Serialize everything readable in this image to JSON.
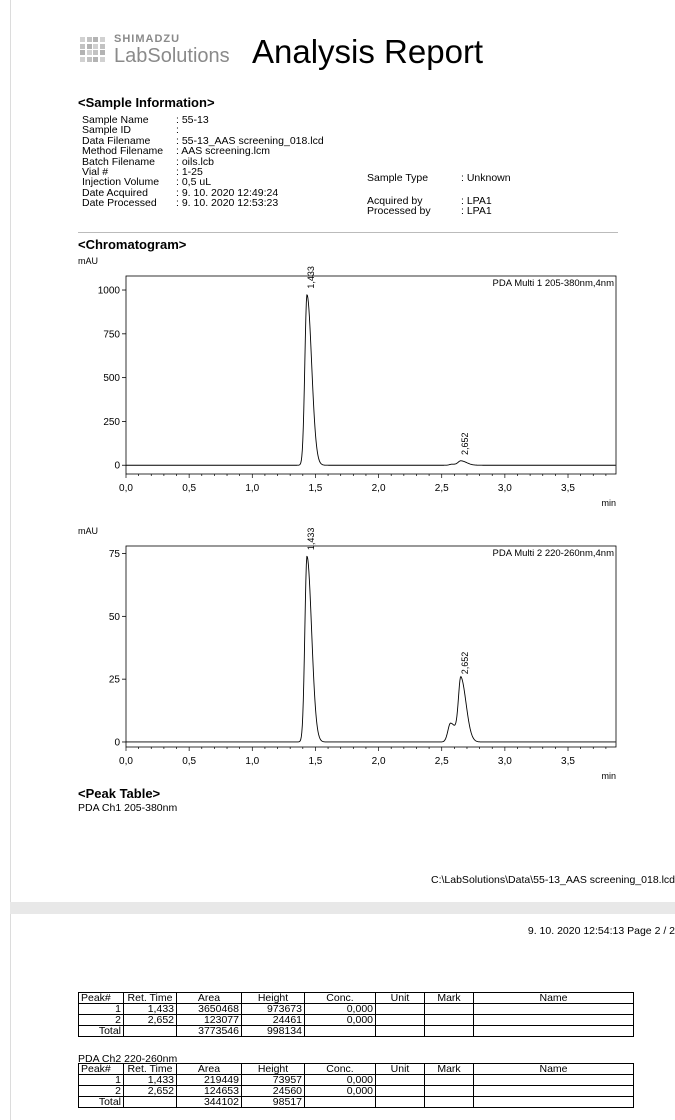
{
  "header": {
    "brand_small": "SHIMADZU",
    "brand_large": "LabSolutions",
    "title": "Analysis Report"
  },
  "sample_info": {
    "heading": "<Sample Information>",
    "left": [
      {
        "label": "Sample Name",
        "value": ": 55-13"
      },
      {
        "label": "Sample ID",
        "value": ":"
      },
      {
        "label": "Data Filename",
        "value": ": 55-13_AAS screening_018.lcd"
      },
      {
        "label": "Method Filename",
        "value": ": AAS screening.lcm"
      },
      {
        "label": "Batch Filename",
        "value": ": oils.lcb"
      },
      {
        "label": "Vial #",
        "value": ": 1-25"
      },
      {
        "label": "Injection Volume",
        "value": ": 0,5 uL"
      },
      {
        "label": "Date Acquired",
        "value": ": 9. 10. 2020 12:49:24"
      },
      {
        "label": "Date Processed",
        "value": ": 9. 10. 2020 12:53:23"
      }
    ],
    "sample_type_label": "Sample Type",
    "sample_type_value": ": Unknown",
    "acquired_by_label": "Acquired by",
    "acquired_by_value": ": LPA1",
    "processed_by_label": "Processed by",
    "processed_by_value": ": LPA1"
  },
  "chromatogram_heading": "<Chromatogram>",
  "chart_data": [
    {
      "type": "line",
      "title": "PDA Multi 1 205-380nm,4nm",
      "ylabel": "mAU",
      "xlabel": "min",
      "xlim": [
        0,
        3.88
      ],
      "ylim": [
        -50,
        1080
      ],
      "x_ticks": [
        "0,0",
        "0,5",
        "1,0",
        "1,5",
        "2,0",
        "2,5",
        "3,0",
        "3,5"
      ],
      "y_ticks": [
        0,
        250,
        500,
        750,
        1000
      ],
      "series": [
        {
          "peaks": [
            {
              "rt": 1.433,
              "height": 973.673,
              "sigma": 0.028
            },
            {
              "rt": 2.652,
              "height": 24.461,
              "sigma": 0.035
            },
            {
              "rt": 2.58,
              "height": 6,
              "sigma": 0.03
            }
          ]
        }
      ],
      "peak_labels": [
        {
          "label": "1,433",
          "x": 1.433,
          "y": 973.673
        },
        {
          "label": "2,652",
          "x": 2.652,
          "y": 24.461
        }
      ]
    },
    {
      "type": "line",
      "title": "PDA Multi 2 220-260nm,4nm",
      "ylabel": "mAU",
      "xlabel": "min",
      "xlim": [
        0,
        3.88
      ],
      "ylim": [
        -2,
        78
      ],
      "x_ticks": [
        "0,0",
        "0,5",
        "1,0",
        "1,5",
        "2,0",
        "2,5",
        "3,0",
        "3,5"
      ],
      "y_ticks": [
        0,
        25,
        50,
        75
      ],
      "series": [
        {
          "peaks": [
            {
              "rt": 1.433,
              "height": 73.957,
              "sigma": 0.028
            },
            {
              "rt": 2.652,
              "height": 24.56,
              "sigma": 0.032
            },
            {
              "rt": 2.57,
              "height": 7.5,
              "sigma": 0.035
            }
          ]
        }
      ],
      "peak_labels": [
        {
          "label": "1,433",
          "x": 1.433,
          "y": 73.957
        },
        {
          "label": "2,652",
          "x": 2.652,
          "y": 24.56
        }
      ]
    }
  ],
  "peak_table": {
    "heading": "<Peak Table>",
    "ch1_label": "PDA Ch1 205-380nm",
    "ch2_label": "PDA Ch2 220-260nm",
    "columns": [
      "Peak#",
      "Ret. Time",
      "Area",
      "Height",
      "Conc.",
      "Unit",
      "Mark",
      "Name"
    ],
    "ch1_rows": [
      [
        "1",
        "1,433",
        "3650468",
        "973673",
        "0,000",
        "",
        "",
        ""
      ],
      [
        "2",
        "2,652",
        "123077",
        "24461",
        "0,000",
        "",
        "",
        ""
      ],
      [
        "Total",
        "",
        "3773546",
        "998134",
        "",
        "",
        "",
        ""
      ]
    ],
    "ch2_rows": [
      [
        "1",
        "1,433",
        "219449",
        "73957",
        "0,000",
        "",
        "",
        ""
      ],
      [
        "2",
        "2,652",
        "124653",
        "24560",
        "0,000",
        "",
        "",
        ""
      ],
      [
        "Total",
        "",
        "344102",
        "98517",
        "",
        "",
        "",
        ""
      ]
    ]
  },
  "footer": {
    "path": "C:\\LabSolutions\\Data\\55-13_AAS screening_018.lcd",
    "page_meta": "9. 10. 2020 12:54:13  Page 2 / 2"
  }
}
